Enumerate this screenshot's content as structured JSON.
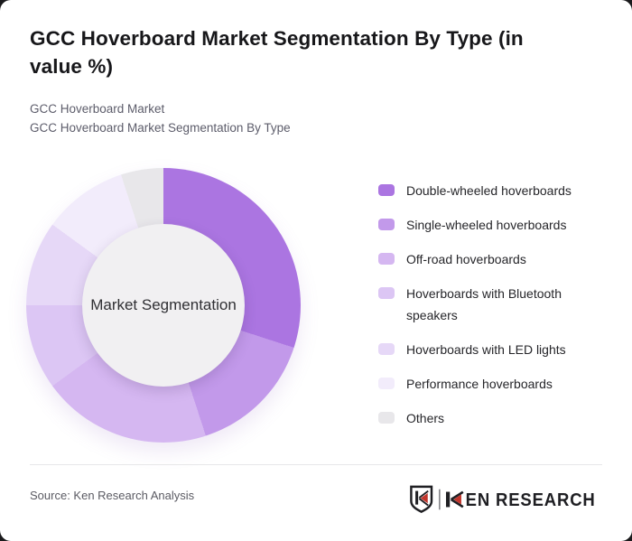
{
  "page": {
    "card_bg": "#ffffff",
    "outside_bg": "#1a1a1c"
  },
  "header": {
    "title_lines": [
      "GCC Hoverboard Market Segmentation By Type (in",
      "value %)"
    ],
    "subtitle_lines": [
      "GCC Hoverboard Market",
      "GCC Hoverboard Market Segmentation By Type"
    ]
  },
  "chart_data": {
    "type": "pie",
    "variant": "donut",
    "title": "GCC Hoverboard Market Segmentation By Type (in value %)",
    "center_label": "Market Segmentation",
    "unit": "value %",
    "start_angle_deg": 0,
    "direction": "clockwise",
    "labels": [
      "Double-wheeled hoverboards",
      "Single-wheeled hoverboards",
      "Off-road hoverboards",
      "Hoverboards with Bluetooth speakers",
      "Hoverboards with LED lights",
      "Performance hoverboards",
      "Others"
    ],
    "values": [
      30,
      15,
      20,
      10,
      10,
      10,
      5
    ],
    "colors": [
      "#ab75e1",
      "#c299ea",
      "#d5b7f1",
      "#dcc6f4",
      "#e6d8f7",
      "#f2ecfb",
      "#e8e7ea"
    ],
    "hole_color": "#f1f0f2",
    "legend_position": "right"
  },
  "footer": {
    "source": "Source: Ken Research Analysis",
    "logo": {
      "brand": "KEN RESEARCH",
      "wordmark_rest": "EN RESEARCH",
      "red": "#c1352c",
      "dark": "#1f1f23",
      "separator_gray": "#8a8a8f"
    }
  }
}
